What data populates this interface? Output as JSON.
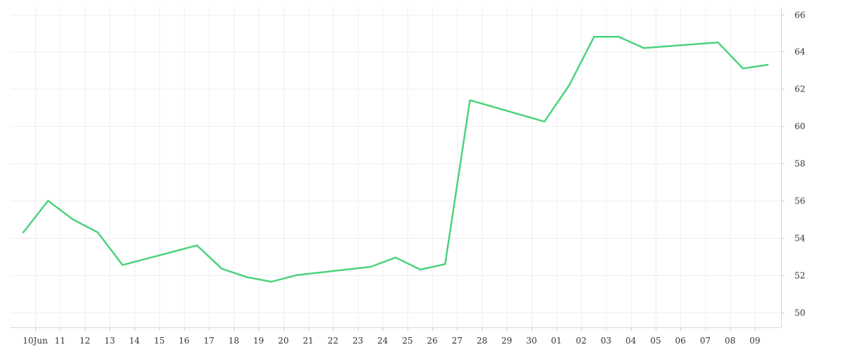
{
  "chart_data": {
    "type": "line",
    "title": "",
    "xlabel": "",
    "ylabel": "",
    "grid": true,
    "legend": "none",
    "line_color": "#4cd37c",
    "y_axis_side": "right",
    "ylim": [
      49.2,
      66.4
    ],
    "yticks": [
      50,
      52,
      54,
      56,
      58,
      60,
      62,
      64,
      66
    ],
    "x_tick_labels": [
      "10Jun",
      "11",
      "12",
      "13",
      "14",
      "15",
      "16",
      "17",
      "18",
      "19",
      "20",
      "21",
      "22",
      "23",
      "24",
      "25",
      "26",
      "27",
      "28",
      "29",
      "30",
      "01",
      "02",
      "03",
      "04",
      "05",
      "06",
      "07",
      "08",
      "09"
    ],
    "series": [
      {
        "values": [
          {
            "x": "2024-06-10",
            "y": 54.3
          },
          {
            "x": "2024-06-11",
            "y": 56.0
          },
          {
            "x": "2024-06-12",
            "y": 55.0
          },
          {
            "x": "2024-06-13",
            "y": 54.3
          },
          {
            "x": "2024-06-14",
            "y": 52.55
          },
          {
            "x": "2024-06-17",
            "y": 53.6
          },
          {
            "x": "2024-06-18",
            "y": 52.35
          },
          {
            "x": "2024-06-19",
            "y": 51.9
          },
          {
            "x": "2024-06-20",
            "y": 51.65
          },
          {
            "x": "2024-06-21",
            "y": 52.0
          },
          {
            "x": "2024-06-24",
            "y": 52.45
          },
          {
            "x": "2024-06-25",
            "y": 52.95
          },
          {
            "x": "2024-06-26",
            "y": 52.3
          },
          {
            "x": "2024-06-27",
            "y": 52.6
          },
          {
            "x": "2024-06-28",
            "y": 61.4
          },
          {
            "x": "2024-07-01",
            "y": 60.25
          },
          {
            "x": "2024-07-02",
            "y": 62.2
          },
          {
            "x": "2024-07-03",
            "y": 64.8
          },
          {
            "x": "2024-07-04",
            "y": 64.8
          },
          {
            "x": "2024-07-05",
            "y": 64.2
          },
          {
            "x": "2024-07-08",
            "y": 64.5
          },
          {
            "x": "2024-07-09",
            "y": 63.1
          },
          {
            "x": "2024-07-10",
            "y": 63.3
          }
        ]
      }
    ]
  }
}
